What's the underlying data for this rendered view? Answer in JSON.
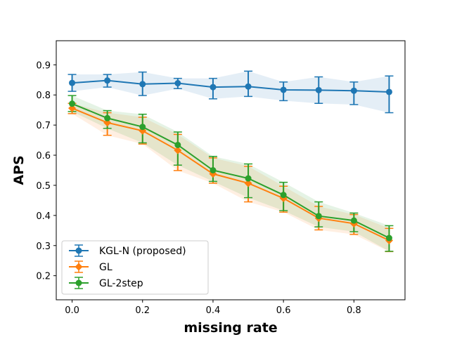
{
  "chart_data": {
    "type": "line",
    "title": "",
    "xlabel": "missing rate",
    "ylabel": "APS",
    "xlim": [
      -0.045,
      0.945
    ],
    "ylim": [
      0.12,
      0.98
    ],
    "xticks": [
      0.0,
      0.2,
      0.4,
      0.6,
      0.8
    ],
    "xtick_labels": [
      "0.0",
      "0.2",
      "0.4",
      "0.6",
      "0.8"
    ],
    "yticks": [
      0.2,
      0.3,
      0.4,
      0.5,
      0.6,
      0.7,
      0.8,
      0.9
    ],
    "ytick_labels": [
      "0.2",
      "0.3",
      "0.4",
      "0.5",
      "0.6",
      "0.7",
      "0.8",
      "0.9"
    ],
    "grid": false,
    "legend_position": "bottom-left",
    "x": [
      0.0,
      0.1,
      0.2,
      0.3,
      0.4,
      0.5,
      0.6,
      0.7,
      0.8,
      0.9
    ],
    "series": [
      {
        "name": "KGL-N (proposed)",
        "color": "#1f77b4",
        "marker": "circle",
        "values": [
          0.84,
          0.848,
          0.836,
          0.839,
          0.826,
          0.828,
          0.817,
          0.816,
          0.814,
          0.81
        ],
        "lower": [
          0.812,
          0.826,
          0.798,
          0.821,
          0.787,
          0.795,
          0.781,
          0.772,
          0.768,
          0.741
        ],
        "upper": [
          0.868,
          0.868,
          0.876,
          0.855,
          0.855,
          0.879,
          0.843,
          0.86,
          0.843,
          0.863
        ]
      },
      {
        "name": "GL",
        "color": "#ff7f0e",
        "marker": "diamond",
        "values": [
          0.756,
          0.708,
          0.681,
          0.616,
          0.538,
          0.507,
          0.457,
          0.391,
          0.373,
          0.317
        ],
        "lower": [
          0.738,
          0.666,
          0.637,
          0.549,
          0.507,
          0.445,
          0.411,
          0.352,
          0.337,
          0.28
        ],
        "upper": [
          0.772,
          0.741,
          0.726,
          0.669,
          0.591,
          0.563,
          0.497,
          0.43,
          0.403,
          0.357
        ]
      },
      {
        "name": "GL-2step",
        "color": "#2ca02c",
        "marker": "circle",
        "values": [
          0.771,
          0.723,
          0.694,
          0.634,
          0.55,
          0.523,
          0.468,
          0.398,
          0.383,
          0.325
        ],
        "lower": [
          0.745,
          0.689,
          0.641,
          0.567,
          0.513,
          0.459,
          0.416,
          0.362,
          0.346,
          0.281
        ],
        "upper": [
          0.798,
          0.748,
          0.736,
          0.677,
          0.596,
          0.571,
          0.51,
          0.445,
          0.408,
          0.366
        ]
      }
    ]
  }
}
